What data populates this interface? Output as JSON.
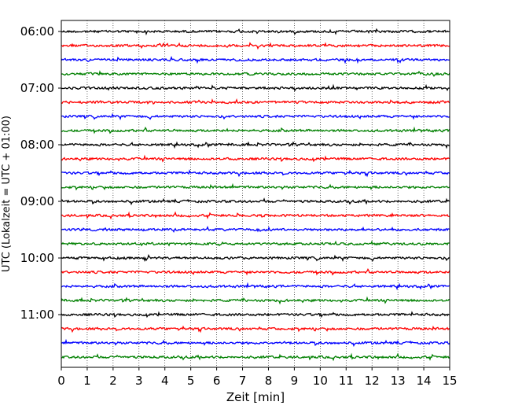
{
  "chart_data": {
    "type": "line",
    "xlabel": "Zeit  [min]",
    "ylabel": "UTC (Lokalzeit = UTC + 01:00)",
    "xlim": [
      0,
      15
    ],
    "x_ticks": [
      "0",
      "1",
      "2",
      "3",
      "4",
      "5",
      "6",
      "7",
      "8",
      "9",
      "10",
      "11",
      "12",
      "13",
      "14",
      "15"
    ],
    "y_ticks": [
      "06:00",
      "07:00",
      "08:00",
      "09:00",
      "10:00",
      "11:00"
    ],
    "ylim": [
      "06:00",
      "11:59"
    ],
    "grid": "vertical dotted lines at each minute",
    "trace_interval_minutes": 15,
    "color_cycle": [
      "#000000",
      "#ff0000",
      "#0000ff",
      "#008000"
    ],
    "series": [
      {
        "start": "06:00",
        "color": "#000000"
      },
      {
        "start": "06:15",
        "color": "#ff0000"
      },
      {
        "start": "06:30",
        "color": "#0000ff"
      },
      {
        "start": "06:45",
        "color": "#008000"
      },
      {
        "start": "07:00",
        "color": "#000000"
      },
      {
        "start": "07:15",
        "color": "#ff0000"
      },
      {
        "start": "07:30",
        "color": "#0000ff"
      },
      {
        "start": "07:45",
        "color": "#008000"
      },
      {
        "start": "08:00",
        "color": "#000000"
      },
      {
        "start": "08:15",
        "color": "#ff0000"
      },
      {
        "start": "08:30",
        "color": "#0000ff"
      },
      {
        "start": "08:45",
        "color": "#008000"
      },
      {
        "start": "09:00",
        "color": "#000000"
      },
      {
        "start": "09:15",
        "color": "#ff0000"
      },
      {
        "start": "09:30",
        "color": "#0000ff"
      },
      {
        "start": "09:45",
        "color": "#008000"
      },
      {
        "start": "10:00",
        "color": "#000000"
      },
      {
        "start": "10:15",
        "color": "#ff0000"
      },
      {
        "start": "10:30",
        "color": "#0000ff"
      },
      {
        "start": "10:45",
        "color": "#008000"
      },
      {
        "start": "11:00",
        "color": "#000000"
      },
      {
        "start": "11:15",
        "color": "#ff0000"
      },
      {
        "start": "11:30",
        "color": "#0000ff"
      },
      {
        "start": "11:45",
        "color": "#008000"
      }
    ]
  }
}
